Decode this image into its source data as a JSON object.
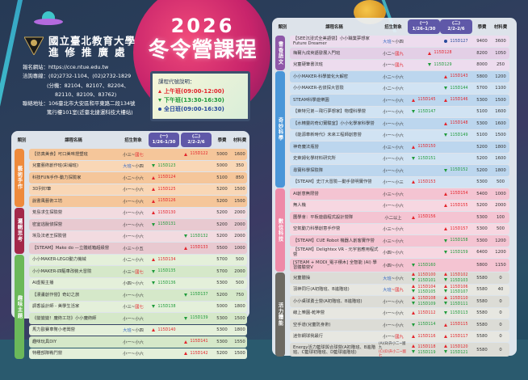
{
  "header": {
    "org_line1": "國立臺北教育大學",
    "org_line2": "進修推廣處",
    "info": [
      "報名網站：https://cce.ntue.edu.tw",
      "洽詢專線：(02)2732-1104、(02)2732-1829",
      "(分機：82104、82107、82204、",
      "82110、82109、83762)",
      "聯絡地址：106臺北市大安區和平東路二段134號",
      "篤行樓101室(近臺北捷運科技大樓站)"
    ],
    "title_year": "2026",
    "title_main": "冬令營課程"
  },
  "legend": {
    "title": "課程代號說明：",
    "items": [
      {
        "icon": "triangle-up",
        "label": "上午班(09:00-12:00)",
        "color": "#e3242b"
      },
      {
        "icon": "triangle-down",
        "label": "下午班(13:30-16:30)",
        "color": "#1e9a3a"
      },
      {
        "icon": "circle",
        "label": "全日班(09:00-16:30)",
        "color": "#274a9c"
      }
    ]
  },
  "table_header": {
    "category": "類別",
    "course": "課程名稱",
    "target": "招生對象",
    "week1_label": "(一)",
    "week1_dates": "1/26-1/30",
    "week2_label": "(二)",
    "week2_dates": "2/2-2/6",
    "fee": "學費",
    "material": "材料費"
  },
  "left_categories": [
    {
      "name": "藝術手作",
      "color": "#ee8a3c"
    },
    {
      "name": "邏輯思考",
      "color": "#a3294a"
    },
    {
      "name": "趣味主題",
      "color": "#6bb85a"
    }
  ],
  "left_rows": [
    {
      "name": "【仿真美食】可口美味捏塑班",
      "t1": "小三~",
      "t2": "國七",
      "w1": "",
      "w2": "115D122",
      "w2t": "up",
      "fee": "5000",
      "mat": "1600"
    },
    {
      "name": "兒童藝術創作班(彩繪班)",
      "t1": "大班",
      "t2": "~小四",
      "tb": true,
      "w1": "115D123",
      "w1t": "dn",
      "w2": "",
      "fee": "5000",
      "mat": "350"
    },
    {
      "name": "科技FUN手作-動力探險家",
      "t1": "小二~小六",
      "w1": "115D124",
      "w1t": "up",
      "w2": "",
      "fee": "5100",
      "mat": "850"
    },
    {
      "name": "3D列印筆",
      "t1": "小一~小六",
      "w1": "115D125",
      "w1t": "up",
      "w2": "",
      "fee": "5200",
      "mat": "1500"
    },
    {
      "name": "說書風藝術工坊",
      "t1": "小一~小六",
      "w1": "115D126",
      "w1t": "up",
      "w2": "",
      "fee": "5200",
      "mat": "1500"
    },
    {
      "name": "荒島求生探險營",
      "t1": "小一~小六",
      "w1": "115D130",
      "w1t": "up",
      "w2": "",
      "fee": "5200",
      "mat": "2000"
    },
    {
      "name": "密室逃脫偵探營",
      "t1": "小一~小六",
      "w1": "115D131",
      "w1t": "dn",
      "w2": "",
      "fee": "5200",
      "mat": "2000"
    },
    {
      "name": "埃及法老王探險營",
      "t1": "小一~小六",
      "w1": "",
      "w2": "115D132",
      "w2t": "dn",
      "fee": "5200",
      "mat": "2000"
    },
    {
      "name": "【STEAM】Make do —立體紙箱超級營",
      "t1": "小三~小五",
      "w1": "",
      "w2": "115D133",
      "w2t": "up",
      "fee": "5500",
      "mat": "1000"
    },
    {
      "name": "小小MAKER-LEGO動力機械",
      "t1": "小二~小六",
      "w1": "115D134",
      "w1t": "up",
      "w2": "",
      "fee": "5700",
      "mat": "500"
    },
    {
      "name": "小小MAKER-四驅車改裝大冒險",
      "t1": "小三~",
      "t2": "國七",
      "w1": "115D135",
      "w1t": "dn",
      "w2": "",
      "fee": "5700",
      "mat": "2000"
    },
    {
      "name": "AI虛擬主播",
      "t1": "小四~小六",
      "w1": "115D136",
      "w1t": "dn",
      "w2": "",
      "fee": "5300",
      "mat": "500"
    },
    {
      "name": "【漫畫創作營】奇幻之旅",
      "t1": "小一~小六",
      "w1": "",
      "w2": "115D137",
      "w2t": "dn",
      "fee": "5200",
      "mat": "750"
    },
    {
      "name": "調香設計師 - 美學生活家",
      "t1": "小三~",
      "t2": "國七",
      "w1": "115D138",
      "w1t": "dn",
      "w2": "",
      "fee": "5000",
      "mat": "1800"
    },
    {
      "name": "《變變變！魔術工坊》小小魔術師",
      "t1": "小一~小六",
      "w1": "",
      "w2": "115D139",
      "w2t": "dn",
      "fee": "5300",
      "mat": "1500"
    },
    {
      "name": "馬力歐賽車幫小老闆營",
      "t1": "大班",
      "t2": "~小四",
      "tb": true,
      "w1": "115D140",
      "w1t": "up",
      "w2": "",
      "fee": "5300",
      "mat": "1800"
    },
    {
      "name": "趣味玩具DIY",
      "t1": "小一~小六",
      "w1": "",
      "w2": "115D141",
      "w2t": "up",
      "fee": "5300",
      "mat": "1550"
    },
    {
      "name": "特種部隊戰鬥營",
      "t1": "小一~小六",
      "w1": "",
      "w2": "115D142",
      "w2t": "up",
      "fee": "5200",
      "mat": "1500"
    }
  ],
  "right_categories": [
    {
      "name": "書香語文",
      "color": "#8e58a8"
    },
    {
      "name": "奇妙科學",
      "color": "#4a96d8"
    },
    {
      "name": "數位科技",
      "color": "#ee8aa8"
    },
    {
      "name": "活力體能",
      "color": "#6c6a64"
    }
  ],
  "right_rows": [
    {
      "name": "【SEE沉浸式全美語營】小小職業夢想家Future Dreamer",
      "t1": "大班",
      "t2": "~小四",
      "tb": true,
      "w1": "",
      "w2": "115D127",
      "w2t": "full",
      "fee": "9400",
      "mat": "3600"
    },
    {
      "name": "梅爾九成英語發展入門班",
      "t1": "小二~",
      "t2": "國九",
      "w1": "115D128",
      "w1t": "up",
      "span": true,
      "fee": "8200",
      "mat": "1050"
    },
    {
      "name": "兒童硬筆書法班",
      "t1": "小一~",
      "t2": "國九",
      "w1": "115D129",
      "w1t": "dn",
      "span": true,
      "fee": "8000",
      "mat": "250"
    },
    {
      "name": "小小MAKER-科學變化大解密",
      "t1": "小二~小六",
      "w1": "",
      "w2": "115D143",
      "w2t": "up",
      "fee": "5800",
      "mat": "1200"
    },
    {
      "name": "小小MAKER-名偵探大冒險",
      "t1": "小二~小六",
      "w1": "",
      "w2": "115D144",
      "w2t": "dn",
      "fee": "5700",
      "mat": "1100"
    },
    {
      "name": "STEAM科學遊樂園",
      "t1": "小一~小六",
      "w1": "115D145",
      "w1t": "up",
      "w2": "115D146",
      "w2t": "up",
      "fee": "5300",
      "mat": "1500"
    },
    {
      "name": "【萊特兄弟－飛行夢想家】物理科學營",
      "t1": "小一~小六",
      "w1": "115D147",
      "w1t": "dn",
      "w2": "",
      "fee": "5100",
      "mat": "1600"
    },
    {
      "name": "【水精靈的奇幻實驗室】小小化學家科學營",
      "t1": "小一~小六",
      "w1": "",
      "w2": "115D148",
      "w2t": "up",
      "fee": "5300",
      "mat": "1600"
    },
    {
      "name": "《能源車新時代》未來工程師創意營",
      "t1": "小一~小六",
      "w1": "",
      "w2": "115D149",
      "w2t": "dn",
      "fee": "5100",
      "mat": "1500"
    },
    {
      "name": "神奇魔法瓶營",
      "t1": "小三~小六",
      "w1": "115D150",
      "w1t": "up",
      "w2": "",
      "fee": "5200",
      "mat": "1800"
    },
    {
      "name": "史萊姆化學材料研究所",
      "t1": "小一~小六",
      "w1": "115D151",
      "w1t": "dn",
      "w2": "",
      "fee": "5200",
      "mat": "1600"
    },
    {
      "name": "尋寶科學探險隊",
      "t1": "小一~小六",
      "w1": "",
      "w2": "115D152",
      "w2t": "dn",
      "fee": "5200",
      "mat": "1800"
    },
    {
      "name": "【STEAM】史汀大冒險—動手發明實作營",
      "t1": "小一~小三",
      "w1": "115D153",
      "w1t": "up",
      "w2": "",
      "fee": "5300",
      "mat": "500"
    },
    {
      "name": "AI創意無限營",
      "t1": "小三~小六",
      "w1": "",
      "w2": "115D154",
      "w2t": "up",
      "fee": "5400",
      "mat": "1000"
    },
    {
      "name": "無人機",
      "t1": "小一~小六",
      "w1": "",
      "w2": "115D155",
      "w2t": "up",
      "fee": "5200",
      "mat": "2000"
    },
    {
      "name": "圖學會：平板遊戲程式設計營隊",
      "t1": "小二以上",
      "w1": "115D156",
      "w1t": "up",
      "w2": "",
      "fee": "5300",
      "mat": "100"
    },
    {
      "name": "空氣動力科學創意手作營",
      "t1": "小三~小六",
      "w1": "",
      "w2": "115D157",
      "w2t": "up",
      "fee": "5300",
      "mat": "500"
    },
    {
      "name": "【STEAM】CUE Robot 機器人創客實作營",
      "t1": "小三~小六",
      "w1": "",
      "w2": "115D158",
      "w2t": "dn",
      "fee": "5300",
      "mat": "1200"
    },
    {
      "name": "【STEAM】Delightex VR - 元宇宙應用程式營",
      "t1": "小四~小六",
      "w1": "",
      "w2": "115D159",
      "w2t": "dn",
      "fee": "6400",
      "mat": "1200"
    },
    {
      "name": "[STEAM + MODI_電子積木] 全智能 (AI) 學習體驗營V",
      "t1": "小四~小六",
      "w1": "115D160",
      "w1t": "dn",
      "w2": "",
      "fee": "5800",
      "mat": "1150"
    },
    {
      "name": "兒童體操",
      "t1": "大班",
      "t2": "~小六",
      "tb": true,
      "w1": "115D100",
      "w1b": "115D101",
      "w2": "115D102",
      "w2b": "115D103",
      "dual": true,
      "fee": "5580",
      "mat": "0"
    },
    {
      "name": "羽神同行(A初階班、B進階班)",
      "t1": "大班",
      "t2": "~國九",
      "tb": true,
      "tr": true,
      "w1": "115D104",
      "w1b": "115D105",
      "w2": "115D106",
      "w2b": "115D107",
      "dual": true,
      "fee": "5580",
      "mat": "40"
    },
    {
      "name": "小小桌球勇士營(A初階班、B進階班)",
      "t1": "小一~小六",
      "w1": "115D108",
      "w1b": "115D109",
      "w2": "115D110",
      "w2b": "115D111",
      "dual": true,
      "fee": "5580",
      "mat": "0"
    },
    {
      "name": "線上樂園-乾坤營",
      "t1": "小一~小六",
      "w1": "115D112",
      "w1t": "up",
      "w2": "115D113",
      "w2t": "dn",
      "fee": "5580",
      "mat": "0"
    },
    {
      "name": "空手道(兒童防身術)",
      "t1": "小一~小六",
      "w1": "115D114",
      "w1t": "dn",
      "w2": "115D115",
      "w2t": "up",
      "fee": "5580",
      "mat": "0"
    },
    {
      "name": "迷你網球我最行",
      "t1": "小一~",
      "t2": "國九",
      "w1": "115D116",
      "w1t": "up",
      "w2": "115D117",
      "w2t": "up",
      "fee": "5580",
      "mat": "0"
    },
    {
      "name": "Energy活力籃球與合球營(A初階班、B進階班、C籃球初階班、D籃球進階班)",
      "t1": "(A)(B)升小二~國九",
      "t2": "(C)(D)升小二~國七",
      "w1": "115D118",
      "w1b": "115D119",
      "w2": "115D120",
      "w2b": "115D121",
      "dual": true,
      "fee": "5580",
      "mat": "0"
    }
  ]
}
